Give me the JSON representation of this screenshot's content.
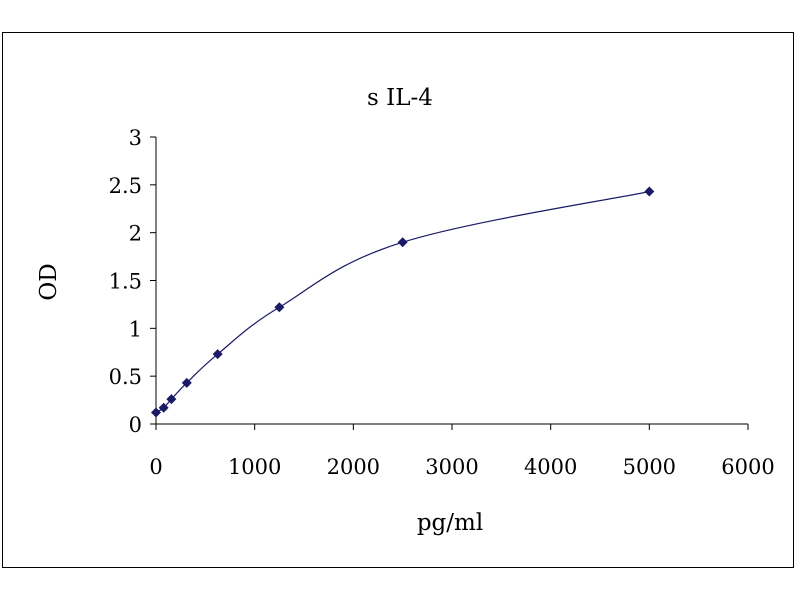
{
  "chart_data": {
    "type": "scatter",
    "title": "s IL-4",
    "xlabel": "pg/ml",
    "ylabel": "OD",
    "xlim": [
      0,
      6000
    ],
    "ylim": [
      0,
      3
    ],
    "xticks": [
      "0",
      "1000",
      "2000",
      "3000",
      "4000",
      "5000",
      "6000"
    ],
    "yticks": [
      "0",
      "0.5",
      "1",
      "1.5",
      "2",
      "2.5",
      "3"
    ],
    "grid": false,
    "legend": "none",
    "series": [
      {
        "x": [
          0,
          78,
          156,
          312,
          625,
          1250,
          2500,
          5000
        ],
        "y": [
          0.12,
          0.17,
          0.26,
          0.43,
          0.73,
          1.22,
          1.9,
          2.43
        ],
        "marker": "diamond",
        "line": "smooth",
        "color": "#1a1a66"
      }
    ]
  }
}
